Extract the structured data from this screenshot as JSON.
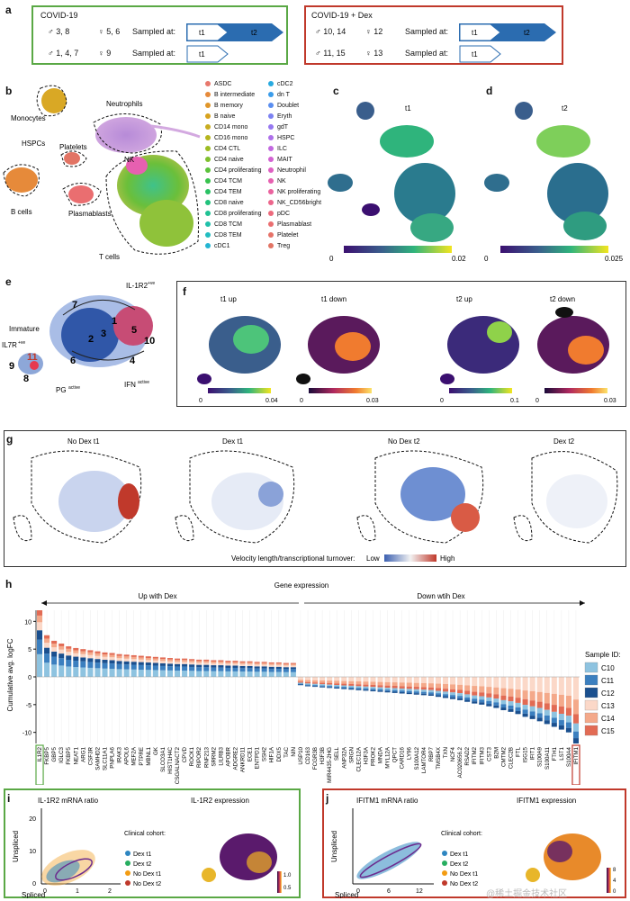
{
  "panel_labels": {
    "a": "a",
    "b": "b",
    "c": "c",
    "d": "d",
    "e": "e",
    "f": "f",
    "g": "g",
    "h": "h",
    "i": "i",
    "j": "j"
  },
  "panel_a": {
    "left": {
      "title": "COVID-19",
      "row1_male": "♂ 3, 8",
      "row1_female": "♀ 5, 6",
      "row2_male": "♂ 1, 4, 7",
      "row2_female": "♀ 9",
      "sampled_at": "Sampled at:",
      "t1": "t1",
      "t2": "t2"
    },
    "right": {
      "title": "COVID-19 + Dex",
      "row1_male": "♂ 10, 14",
      "row1_female": "♀ 12",
      "row2_male": "♂ 11, 15",
      "row2_female": "♀ 13",
      "sampled_at": "Sampled at:",
      "t1": "t1",
      "t2": "t2"
    },
    "colors": {
      "green": "#5aa845",
      "red": "#c0392b",
      "arrow_blue": "#2b6cb0"
    }
  },
  "panel_b": {
    "cluster_labels": {
      "monocytes": "Monocytes",
      "hspcs": "HSPCs",
      "b_cells": "B cells",
      "platelets": "Platelets",
      "plasmablasts": "Plasmablasts",
      "neutrophils": "Neutrophils",
      "nk": "NK",
      "t_cells": "T cells"
    },
    "legend_col1": [
      {
        "label": "ASDC",
        "color": "#e8786c"
      },
      {
        "label": "B intermediate",
        "color": "#e68a3a"
      },
      {
        "label": "B memory",
        "color": "#e0962a"
      },
      {
        "label": "B naive",
        "color": "#d7a21e"
      },
      {
        "label": "CD14 mono",
        "color": "#c8ac20"
      },
      {
        "label": "CD16 mono",
        "color": "#b5b51e"
      },
      {
        "label": "CD4 CTL",
        "color": "#9cbc22"
      },
      {
        "label": "CD4 naive",
        "color": "#7fc02e"
      },
      {
        "label": "CD4 proliferating",
        "color": "#5cc23c"
      },
      {
        "label": "CD4 TCM",
        "color": "#39c24e"
      },
      {
        "label": "CD4 TEM",
        "color": "#2ac264"
      },
      {
        "label": "CD8 naive",
        "color": "#22c27c"
      },
      {
        "label": "CD8 proliferating",
        "color": "#20c294"
      },
      {
        "label": "CD8 TCM",
        "color": "#20c0aa"
      },
      {
        "label": "CD8 TEM",
        "color": "#22bcc0"
      },
      {
        "label": "cDC1",
        "color": "#24b5d2"
      }
    ],
    "legend_col2": [
      {
        "label": "cDC2",
        "color": "#28aae0"
      },
      {
        "label": "dn T",
        "color": "#3a9cea"
      },
      {
        "label": "Doublet",
        "color": "#5a8ef0"
      },
      {
        "label": "Eryth",
        "color": "#7c82f2"
      },
      {
        "label": "gdT",
        "color": "#9678f0"
      },
      {
        "label": "HSPC",
        "color": "#ae70ea"
      },
      {
        "label": "ILC",
        "color": "#c268e0"
      },
      {
        "label": "MAIT",
        "color": "#d262d2"
      },
      {
        "label": "Neutrophil",
        "color": "#de60c2"
      },
      {
        "label": "NK",
        "color": "#e660b0"
      },
      {
        "label": "NK proliferating",
        "color": "#ea629e"
      },
      {
        "label": "NK_CD56bright",
        "color": "#ec668c"
      },
      {
        "label": "pDC",
        "color": "#ec6a7c"
      },
      {
        "label": "Plasmablast",
        "color": "#ea6e70"
      },
      {
        "label": "Platelet",
        "color": "#e67268"
      },
      {
        "label": "Treg",
        "color": "#e27464"
      }
    ]
  },
  "panel_c": {
    "title": "t1",
    "cbar_min": "0",
    "cbar_max": "0.02"
  },
  "panel_d": {
    "title": "t2",
    "cbar_min": "0",
    "cbar_max": "0.025"
  },
  "panel_e": {
    "labels": {
      "immature": "Immature",
      "il1r2": "IL-1R2",
      "il1r2_sup": "+ve",
      "il7r": "IL7R",
      "il7r_sup": "+ve",
      "pg": "PG",
      "pg_sup": "active",
      "ifn": "IFN",
      "ifn_sup": "active"
    },
    "clusters": [
      "7",
      "1",
      "2",
      "3",
      "5",
      "10",
      "6",
      "4",
      "9",
      "11",
      "8"
    ]
  },
  "panel_f": {
    "subplots": [
      {
        "title": "t1 up",
        "cmin": "0",
        "cmax": "0.04"
      },
      {
        "title": "t1 down",
        "cmin": "0",
        "cmax": "0.03"
      },
      {
        "title": "t2 up",
        "cmin": "0",
        "cmax": "0.1"
      },
      {
        "title": "t2 down",
        "cmin": "0",
        "cmax": "0.03"
      }
    ]
  },
  "panel_g": {
    "subplots": [
      "No Dex t1",
      "Dex t1",
      "No Dex t2",
      "Dex t2"
    ],
    "scale_label": "Velocity length/transcriptional turnover:",
    "low": "Low",
    "high": "High"
  },
  "chart_data": {
    "type": "bar",
    "title": "Gene expression",
    "left_arrow_label": "Up with Dex",
    "right_arrow_label": "Down wtih Dex",
    "ylabel": "Cumulative avg. logFC",
    "ylim": [
      -12,
      12
    ],
    "yticks": [
      "10",
      "5",
      "0",
      "-5",
      "-10"
    ],
    "legend_title": "Sample ID:",
    "series": [
      {
        "name": "C10",
        "color": "#8ec3e0"
      },
      {
        "name": "C11",
        "color": "#3b7fbf"
      },
      {
        "name": "C12",
        "color": "#1a4f8e"
      },
      {
        "name": "C13",
        "color": "#fbd8c8"
      },
      {
        "name": "C14",
        "color": "#f4a98a"
      },
      {
        "name": "C15",
        "color": "#e26b54"
      }
    ],
    "categories": [
      "IL1R2",
      "FKBP5",
      "GBP5",
      "IGLC3",
      "FKBP5",
      "NEAT1",
      "ARG1",
      "CSF3R",
      "SAMHD2",
      "SLC11A1",
      "PNPLA6",
      "IRAK3",
      "APOL6",
      "MEF2A",
      "PTPRE",
      "MBNL1",
      "GK",
      "SLCO3A1",
      "HIST1H4C",
      "CSGALNACT2",
      "CPVD",
      "ROCK1",
      "RIPOR2",
      "RNF213",
      "SRRM2",
      "LILRB3",
      "APOBR",
      "ADGRE2",
      "ANKRD11",
      "ECE1",
      "ENTPD1",
      "SSH2",
      "HIF1A",
      "DDX5",
      "TAC",
      "NIN",
      "USP10",
      "CD163",
      "FCGR3B",
      "H3F3B",
      "MIR4435-2HG",
      "SELL",
      "ANP32A",
      "SRGN",
      "CLEC12A",
      "H3F3A",
      "PROK2",
      "MNDA",
      "MYL12A",
      "QPCT",
      "CARD16",
      "LY96",
      "S100A12",
      "LAMTOR4",
      "RBP7",
      "TMSB4X",
      "TXN",
      "NCF4",
      "AC020656.2",
      "RSAD2",
      "IFITM2",
      "IFITM3",
      "CST3",
      "B2M",
      "CMTM2",
      "CLEC2B",
      "FTL",
      "ISG15",
      "IFIT1",
      "S100A9",
      "S100A11",
      "FTH1",
      "LST1",
      "S100A4",
      "IFITM1"
    ],
    "cumulative": [
      12,
      7.5,
      6.5,
      6,
      5.5,
      5.2,
      5,
      4.8,
      4.6,
      4.4,
      4.3,
      4.1,
      4,
      3.9,
      3.8,
      3.7,
      3.6,
      3.5,
      3.4,
      3.3,
      3.3,
      3.2,
      3.1,
      3.1,
      3,
      3,
      2.9,
      2.9,
      2.8,
      2.8,
      2.7,
      2.7,
      2.6,
      2.6,
      2.5,
      2.5,
      -1.5,
      -1.7,
      -1.8,
      -1.9,
      -2,
      -2.1,
      -2.2,
      -2.3,
      -2.4,
      -2.5,
      -2.6,
      -2.7,
      -2.8,
      -2.9,
      -3,
      -3.1,
      -3.2,
      -3.3,
      -3.4,
      -3.6,
      -3.8,
      -4,
      -4.2,
      -4.5,
      -4.8,
      -5,
      -5.3,
      -5.6,
      -6,
      -6.3,
      -6.7,
      -7.2,
      -7.6,
      -8,
      -8.5,
      -9,
      -9.5,
      -10,
      -12
    ],
    "highlight_left": "IL1R2",
    "highlight_right": "IFITM1"
  },
  "panel_i": {
    "title": "IL-1R2 mRNA ratio",
    "expr_title": "IL-1R2 expression",
    "xlabel": "Spliced",
    "ylabel": "Unspliced",
    "xticks": [
      "0",
      "1",
      "2"
    ],
    "yticks": [
      "0",
      "10",
      "20"
    ],
    "legend_title": "Clinical\ncohort:",
    "legend": [
      {
        "label": "Dex t1",
        "color": "#2e86c1"
      },
      {
        "label": "Dex t2",
        "color": "#27ae60"
      },
      {
        "label": "No Dex t1",
        "color": "#f39c12"
      },
      {
        "label": "No Dex t2",
        "color": "#c0392b"
      }
    ],
    "cbar": [
      "1.0",
      "0.5"
    ]
  },
  "panel_j": {
    "title": "IFITM1 mRNA ratio",
    "expr_title": "IFITM1 expression",
    "xlabel": "Spliced",
    "ylabel": "Unspliced",
    "xticks": [
      "0",
      "6",
      "12"
    ],
    "legend_title": "Clinical\ncohort:",
    "legend": [
      {
        "label": "Dex t1",
        "color": "#2e86c1"
      },
      {
        "label": "Dex t2",
        "color": "#27ae60"
      },
      {
        "label": "No Dex t1",
        "color": "#f39c12"
      },
      {
        "label": "No Dex t2",
        "color": "#c0392b"
      }
    ],
    "cbar": [
      "8",
      "4",
      "0"
    ]
  },
  "watermark": "@稀土掘金技术社区"
}
